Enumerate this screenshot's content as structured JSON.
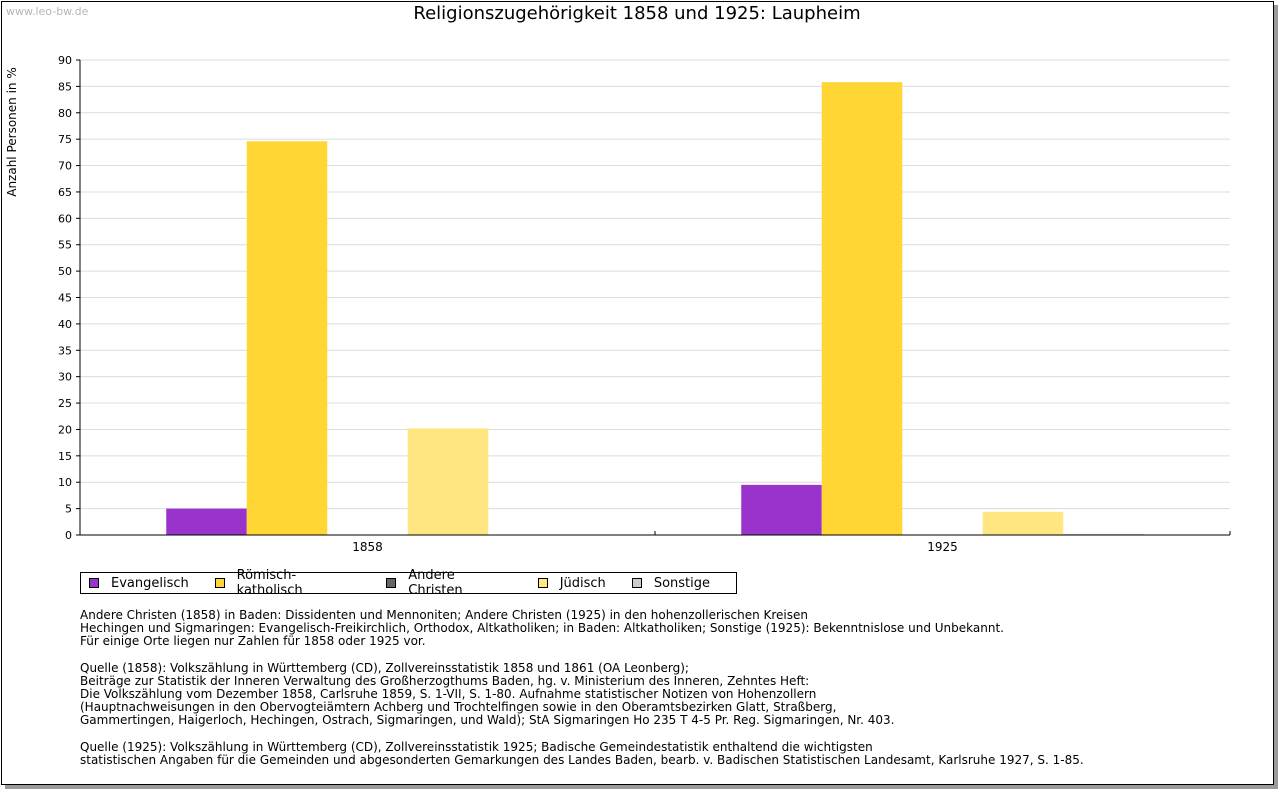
{
  "watermark": "www.leo-bw.de",
  "chart_data": {
    "type": "bar",
    "title": "Religionszugehörigkeit 1858 und 1925: Laupheim",
    "ylabel": "Anzahl Personen in %",
    "xlabel": "",
    "ylim": [
      0,
      90
    ],
    "yticks": [
      0,
      5,
      10,
      15,
      20,
      25,
      30,
      35,
      40,
      45,
      50,
      55,
      60,
      65,
      70,
      75,
      80,
      85,
      90
    ],
    "categories": [
      "1858",
      "1925"
    ],
    "grid": true,
    "legend_position": "bottom",
    "series": [
      {
        "name": "Evangelisch",
        "color": "#9933cc",
        "values": [
          5.0,
          9.5
        ]
      },
      {
        "name": "Römisch-katholisch",
        "color": "#ffd633",
        "values": [
          74.6,
          85.8
        ]
      },
      {
        "name": "Andere Christen",
        "color": "#666666",
        "values": [
          0,
          0
        ]
      },
      {
        "name": "Jüdisch",
        "color": "#ffe680",
        "values": [
          20.2,
          4.4
        ]
      },
      {
        "name": "Sonstige",
        "color": "#cccccc",
        "values": [
          0,
          0.2
        ]
      }
    ]
  },
  "notes": [
    "Andere Christen (1858) in Baden: Dissidenten und Mennoniten; Andere Christen (1925) in den hohenzollerischen Kreisen\nHechingen und Sigmaringen: Evangelisch-Freikirchlich, Orthodox, Altkatholiken; in Baden: Altkatholiken; Sonstige (1925): Bekenntnislose und Unbekannt.\nFür einige Orte liegen nur Zahlen für 1858 oder 1925 vor.",
    "Quelle (1858): Volkszählung in Württemberg (CD), Zollvereinsstatistik 1858 und 1861 (OA Leonberg);\nBeiträge zur Statistik der Inneren Verwaltung des Großherzogthums Baden, hg. v. Ministerium des Inneren, Zehntes Heft:\nDie Volkszählung vom Dezember 1858, Carlsruhe 1859, S. 1-VII, S. 1-80. Aufnahme statistischer Notizen von Hohenzollern\n(Hauptnachweisungen in den Obervogteiämtern Achberg und Trochtelfingen sowie in den Oberamtsbezirken Glatt, Straßberg,\nGammertingen, Haigerloch, Hechingen, Ostrach, Sigmaringen, und Wald); StA Sigmaringen Ho 235 T 4-5 Pr. Reg. Sigmaringen, Nr. 403.",
    "Quelle (1925): Volkszählung in Württemberg (CD), Zollvereinsstatistik 1925; Badische Gemeindestatistik enthaltend die wichtigsten\nstatistischen Angaben für die Gemeinden und abgesonderten Gemarkungen des Landes Baden, bearb. v. Badischen Statistischen Landesamt, Karlsruhe 1927, S. 1-85."
  ]
}
